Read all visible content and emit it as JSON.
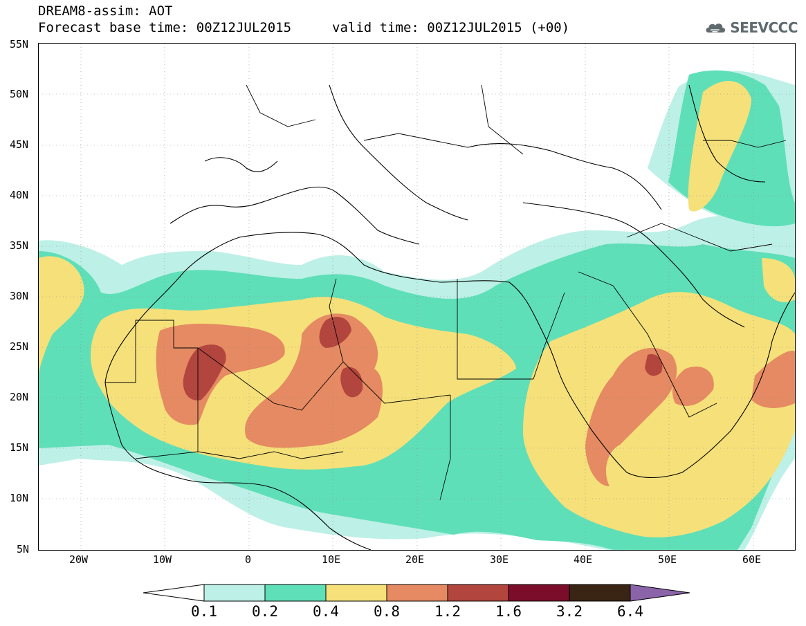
{
  "header": {
    "line1": "DREAM8-assim: AOT",
    "line2_left": "Forecast base time: 00Z12JUL2015",
    "line2_right": "valid time: 00Z12JUL2015 (+00)",
    "logo_text": "SEEVCCC",
    "logo_icon": "cloud-icon"
  },
  "axes": {
    "lat_labels": [
      "55N",
      "50N",
      "45N",
      "40N",
      "35N",
      "30N",
      "25N",
      "20N",
      "15N",
      "10N",
      "5N"
    ],
    "lon_labels": [
      "20W",
      "10W",
      "0",
      "10E",
      "20E",
      "30E",
      "40E",
      "50E",
      "60E"
    ]
  },
  "colorbar": {
    "labels": [
      "0.1",
      "0.2",
      "0.4",
      "0.8",
      "1.2",
      "1.6",
      "3.2",
      "6.4"
    ],
    "colors": [
      "#ffffff",
      "#bdf0e6",
      "#5fdfb8",
      "#f5e07a",
      "#e58a62",
      "#b2453d",
      "#7b0d2a",
      "#3a2413",
      "#8b63a8"
    ]
  },
  "field_colors": {
    "c01": "#bdf0e6",
    "c02": "#5fdfb8",
    "c04": "#f5e07a",
    "c08": "#e58a62",
    "c12": "#b2453d"
  }
}
